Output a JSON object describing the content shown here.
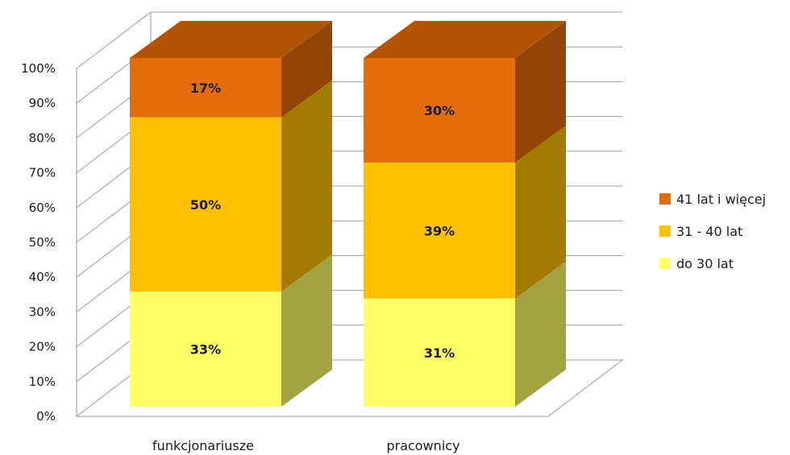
{
  "chart_data": {
    "type": "bar",
    "stacked": true,
    "three_d": true,
    "categories": [
      "funkcjonariusze",
      "pracownicy"
    ],
    "series": [
      {
        "name": "do 30 lat",
        "values": [
          33,
          31
        ],
        "labels": [
          "33%",
          "31%"
        ],
        "color": "#FFFF66"
      },
      {
        "name": "31 - 40 lat",
        "values": [
          50,
          39
        ],
        "labels": [
          "50%",
          "39%"
        ],
        "color": "#FFC000"
      },
      {
        "name": "41 lat i więcej",
        "values": [
          17,
          30
        ],
        "labels": [
          "17%",
          "30%"
        ],
        "color": "#E46C0A"
      }
    ],
    "yticks": [
      "0%",
      "10%",
      "20%",
      "30%",
      "40%",
      "50%",
      "60%",
      "70%",
      "80%",
      "90%",
      "100%"
    ],
    "ylim": [
      0,
      100
    ],
    "grid": true,
    "legend_position": "right",
    "legend_order": [
      "41 lat i więcej",
      "31 - 40 lat",
      "do 30 lat"
    ]
  }
}
